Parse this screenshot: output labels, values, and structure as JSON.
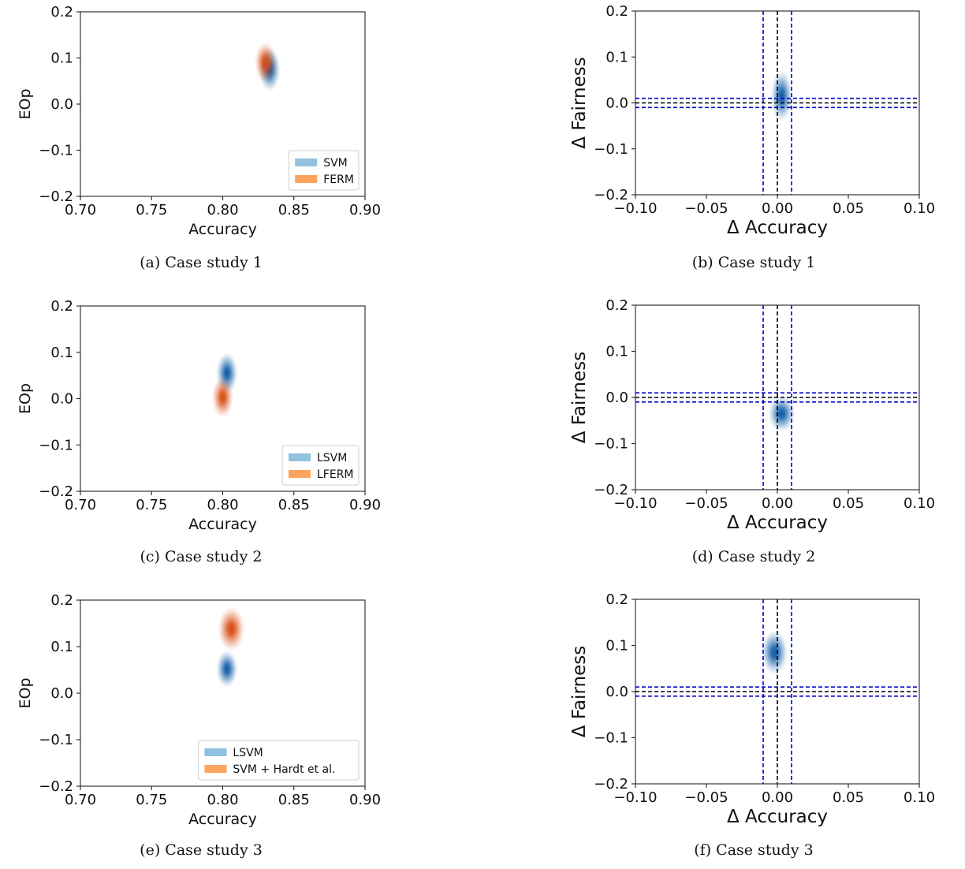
{
  "colors": {
    "blue": "#1f77b4",
    "orange": "#e8590c",
    "leg_blue": "#8fc2de",
    "leg_orange": "#fca35e",
    "ref_blue": "#0000cc",
    "ref_black": "#000000"
  },
  "chart_data": [
    {
      "id": "a",
      "type": "scatter",
      "caption": "(a) Case study 1",
      "xlabel": "Accuracy",
      "ylabel": "EOp",
      "xlim": [
        0.7,
        0.9
      ],
      "ylim": [
        -0.2,
        0.2
      ],
      "xticks": [
        "0.70",
        "0.75",
        "0.80",
        "0.85",
        "0.90"
      ],
      "yticks": [
        "−0.2",
        "−0.1",
        "0.0",
        "0.1",
        "0.2"
      ],
      "series": [
        {
          "name": "SVM",
          "color": "blue",
          "center": [
            0.833,
            0.075
          ],
          "spread": [
            0.004,
            0.03
          ]
        },
        {
          "name": "FERM",
          "color": "orange",
          "center": [
            0.83,
            0.09
          ],
          "spread": [
            0.004,
            0.028
          ]
        }
      ],
      "legend": "lower-right"
    },
    {
      "id": "b",
      "type": "scatter",
      "caption": "(b) Case study 1",
      "xlabel": "Δ Accuracy",
      "ylabel": "Δ Fairness",
      "xlim": [
        -0.1,
        0.1
      ],
      "ylim": [
        -0.2,
        0.2
      ],
      "xticks": [
        "−0.10",
        "−0.05",
        "0.00",
        "0.05",
        "0.10"
      ],
      "yticks": [
        "−0.2",
        "−0.1",
        "0.0",
        "0.1",
        "0.2"
      ],
      "series": [
        {
          "color": "blue",
          "center": [
            0.003,
            0.015
          ],
          "spread": [
            0.004,
            0.035
          ]
        }
      ],
      "reference_lines": {
        "x_black": 0.0,
        "x_blue": [
          -0.01,
          0.01
        ],
        "y_black": 0.0,
        "y_blue": [
          -0.01,
          0.01
        ]
      }
    },
    {
      "id": "c",
      "type": "scatter",
      "caption": "(c) Case study 2",
      "xlabel": "Accuracy",
      "ylabel": "EOp",
      "xlim": [
        0.7,
        0.9
      ],
      "ylim": [
        -0.2,
        0.2
      ],
      "xticks": [
        "0.70",
        "0.75",
        "0.80",
        "0.85",
        "0.90"
      ],
      "yticks": [
        "−0.2",
        "−0.1",
        "0.0",
        "0.1",
        "0.2"
      ],
      "series": [
        {
          "name": "LSVM",
          "color": "blue",
          "center": [
            0.803,
            0.055
          ],
          "spread": [
            0.004,
            0.028
          ]
        },
        {
          "name": "LFERM",
          "color": "orange",
          "center": [
            0.8,
            0.003
          ],
          "spread": [
            0.004,
            0.028
          ]
        }
      ],
      "legend": "lower-right"
    },
    {
      "id": "d",
      "type": "scatter",
      "caption": "(d) Case study 2",
      "xlabel": "Δ Accuracy",
      "ylabel": "Δ Fairness",
      "xlim": [
        -0.1,
        0.1
      ],
      "ylim": [
        -0.2,
        0.2
      ],
      "xticks": [
        "−0.10",
        "−0.05",
        "0.00",
        "0.05",
        "0.10"
      ],
      "yticks": [
        "−0.2",
        "−0.1",
        "0.0",
        "0.1",
        "0.2"
      ],
      "series": [
        {
          "color": "blue",
          "center": [
            0.003,
            -0.035
          ],
          "spread": [
            0.005,
            0.025
          ]
        }
      ],
      "reference_lines": {
        "x_black": 0.0,
        "x_blue": [
          -0.01,
          0.01
        ],
        "y_black": 0.0,
        "y_blue": [
          -0.01,
          0.01
        ]
      }
    },
    {
      "id": "e",
      "type": "scatter",
      "caption": "(e) Case study 3",
      "xlabel": "Accuracy",
      "ylabel": "EOp",
      "xlim": [
        0.7,
        0.9
      ],
      "ylim": [
        -0.2,
        0.2
      ],
      "xticks": [
        "0.70",
        "0.75",
        "0.80",
        "0.85",
        "0.90"
      ],
      "yticks": [
        "−0.2",
        "−0.1",
        "0.0",
        "0.1",
        "0.2"
      ],
      "series": [
        {
          "name": "LSVM",
          "color": "blue",
          "center": [
            0.803,
            0.052
          ],
          "spread": [
            0.004,
            0.025
          ]
        },
        {
          "name": "SVM + Hardt et al.",
          "color": "orange",
          "center": [
            0.806,
            0.138
          ],
          "spread": [
            0.005,
            0.03
          ]
        }
      ],
      "legend": "lower-right"
    },
    {
      "id": "f",
      "type": "scatter",
      "caption": "(f) Case study 3",
      "xlabel": "Δ Accuracy",
      "ylabel": "Δ Fairness",
      "xlim": [
        -0.1,
        0.1
      ],
      "ylim": [
        -0.2,
        0.2
      ],
      "xticks": [
        "−0.10",
        "−0.05",
        "0.00",
        "0.05",
        "0.10"
      ],
      "yticks": [
        "−0.2",
        "−0.1",
        "0.0",
        "0.1",
        "0.2"
      ],
      "series": [
        {
          "color": "blue",
          "center": [
            -0.002,
            0.085
          ],
          "spread": [
            0.005,
            0.03
          ]
        }
      ],
      "reference_lines": {
        "x_black": 0.0,
        "x_blue": [
          -0.01,
          0.01
        ],
        "y_black": 0.0,
        "y_blue": [
          -0.01,
          0.01
        ]
      }
    }
  ]
}
